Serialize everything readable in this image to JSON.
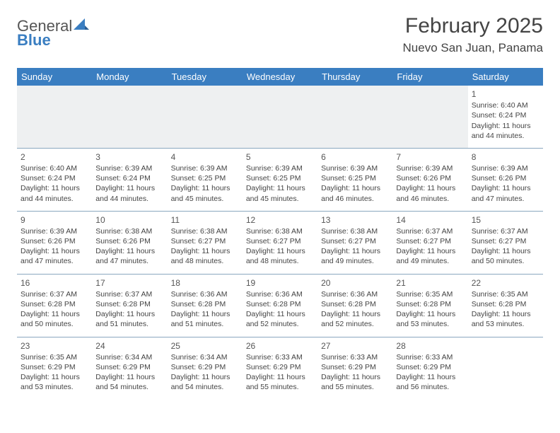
{
  "brand": {
    "line1": "General",
    "line2": "Blue"
  },
  "title": "February 2025",
  "location": "Nuevo San Juan, Panama",
  "colors": {
    "accent": "#3a7ec1",
    "border": "#8aa7bf",
    "text": "#444444",
    "bg": "#ffffff",
    "empty_bg": "#eef0f1"
  },
  "weekdays": [
    "Sunday",
    "Monday",
    "Tuesday",
    "Wednesday",
    "Thursday",
    "Friday",
    "Saturday"
  ],
  "weeks": [
    [
      null,
      null,
      null,
      null,
      null,
      null,
      {
        "n": "1",
        "sr": "6:40 AM",
        "ss": "6:24 PM",
        "dl": "11 hours and 44 minutes."
      }
    ],
    [
      {
        "n": "2",
        "sr": "6:40 AM",
        "ss": "6:24 PM",
        "dl": "11 hours and 44 minutes."
      },
      {
        "n": "3",
        "sr": "6:39 AM",
        "ss": "6:24 PM",
        "dl": "11 hours and 44 minutes."
      },
      {
        "n": "4",
        "sr": "6:39 AM",
        "ss": "6:25 PM",
        "dl": "11 hours and 45 minutes."
      },
      {
        "n": "5",
        "sr": "6:39 AM",
        "ss": "6:25 PM",
        "dl": "11 hours and 45 minutes."
      },
      {
        "n": "6",
        "sr": "6:39 AM",
        "ss": "6:25 PM",
        "dl": "11 hours and 46 minutes."
      },
      {
        "n": "7",
        "sr": "6:39 AM",
        "ss": "6:26 PM",
        "dl": "11 hours and 46 minutes."
      },
      {
        "n": "8",
        "sr": "6:39 AM",
        "ss": "6:26 PM",
        "dl": "11 hours and 47 minutes."
      }
    ],
    [
      {
        "n": "9",
        "sr": "6:39 AM",
        "ss": "6:26 PM",
        "dl": "11 hours and 47 minutes."
      },
      {
        "n": "10",
        "sr": "6:38 AM",
        "ss": "6:26 PM",
        "dl": "11 hours and 47 minutes."
      },
      {
        "n": "11",
        "sr": "6:38 AM",
        "ss": "6:27 PM",
        "dl": "11 hours and 48 minutes."
      },
      {
        "n": "12",
        "sr": "6:38 AM",
        "ss": "6:27 PM",
        "dl": "11 hours and 48 minutes."
      },
      {
        "n": "13",
        "sr": "6:38 AM",
        "ss": "6:27 PM",
        "dl": "11 hours and 49 minutes."
      },
      {
        "n": "14",
        "sr": "6:37 AM",
        "ss": "6:27 PM",
        "dl": "11 hours and 49 minutes."
      },
      {
        "n": "15",
        "sr": "6:37 AM",
        "ss": "6:27 PM",
        "dl": "11 hours and 50 minutes."
      }
    ],
    [
      {
        "n": "16",
        "sr": "6:37 AM",
        "ss": "6:28 PM",
        "dl": "11 hours and 50 minutes."
      },
      {
        "n": "17",
        "sr": "6:37 AM",
        "ss": "6:28 PM",
        "dl": "11 hours and 51 minutes."
      },
      {
        "n": "18",
        "sr": "6:36 AM",
        "ss": "6:28 PM",
        "dl": "11 hours and 51 minutes."
      },
      {
        "n": "19",
        "sr": "6:36 AM",
        "ss": "6:28 PM",
        "dl": "11 hours and 52 minutes."
      },
      {
        "n": "20",
        "sr": "6:36 AM",
        "ss": "6:28 PM",
        "dl": "11 hours and 52 minutes."
      },
      {
        "n": "21",
        "sr": "6:35 AM",
        "ss": "6:28 PM",
        "dl": "11 hours and 53 minutes."
      },
      {
        "n": "22",
        "sr": "6:35 AM",
        "ss": "6:28 PM",
        "dl": "11 hours and 53 minutes."
      }
    ],
    [
      {
        "n": "23",
        "sr": "6:35 AM",
        "ss": "6:29 PM",
        "dl": "11 hours and 53 minutes."
      },
      {
        "n": "24",
        "sr": "6:34 AM",
        "ss": "6:29 PM",
        "dl": "11 hours and 54 minutes."
      },
      {
        "n": "25",
        "sr": "6:34 AM",
        "ss": "6:29 PM",
        "dl": "11 hours and 54 minutes."
      },
      {
        "n": "26",
        "sr": "6:33 AM",
        "ss": "6:29 PM",
        "dl": "11 hours and 55 minutes."
      },
      {
        "n": "27",
        "sr": "6:33 AM",
        "ss": "6:29 PM",
        "dl": "11 hours and 55 minutes."
      },
      {
        "n": "28",
        "sr": "6:33 AM",
        "ss": "6:29 PM",
        "dl": "11 hours and 56 minutes."
      },
      null
    ]
  ],
  "labels": {
    "sunrise": "Sunrise:",
    "sunset": "Sunset:",
    "daylight": "Daylight:"
  }
}
